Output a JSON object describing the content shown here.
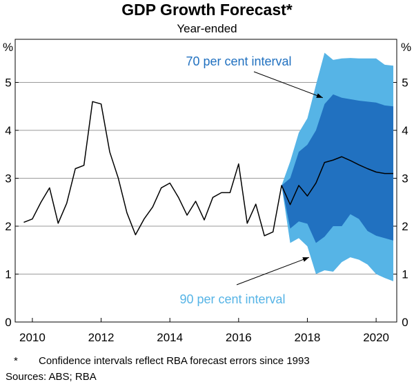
{
  "title": "GDP Growth Forecast*",
  "subtitle": "Year-ended",
  "footnote": {
    "marker": "*",
    "text": "Confidence intervals reflect RBA forecast errors since 1993",
    "sources": "Sources: ABS; RBA"
  },
  "colors": {
    "line": "#000000",
    "band_90": "#56b4e6",
    "band_70": "#2171c0",
    "annotation_70": "#2171c0",
    "annotation_90": "#56b4e6",
    "grid": "#9a9a9a"
  },
  "chart_data": {
    "type": "line",
    "title": "GDP Growth Forecast*",
    "subtitle": "Year-ended",
    "unit_left": "%",
    "unit_right": "%",
    "xlim": [
      2009.5,
      2020.6
    ],
    "ylim": [
      0,
      5.9
    ],
    "grid": true,
    "x_ticks": [
      {
        "value": 2010,
        "label": "2010"
      },
      {
        "value": 2012,
        "label": "2012"
      },
      {
        "value": 2014,
        "label": "2014"
      },
      {
        "value": 2016,
        "label": "2016"
      },
      {
        "value": 2018,
        "label": "2018"
      },
      {
        "value": 2020,
        "label": "2020"
      }
    ],
    "y_ticks": [
      {
        "value": 0,
        "label": "0"
      },
      {
        "value": 1,
        "label": "1"
      },
      {
        "value": 2,
        "label": "2"
      },
      {
        "value": 3,
        "label": "3"
      },
      {
        "value": 4,
        "label": "4"
      },
      {
        "value": 5,
        "label": "5"
      }
    ],
    "series": [
      {
        "kind": "line",
        "x": [
          2009.75,
          2010.0,
          2010.25,
          2010.5,
          2010.75,
          2011.0,
          2011.25,
          2011.5,
          2011.75,
          2012.0,
          2012.25,
          2012.5,
          2012.75,
          2013.0,
          2013.25,
          2013.5,
          2013.75,
          2014.0,
          2014.25,
          2014.5,
          2014.75,
          2015.0,
          2015.25,
          2015.5,
          2015.75,
          2016.0,
          2016.25,
          2016.5,
          2016.75,
          2017.0,
          2017.25,
          2017.5,
          2017.75,
          2018.0,
          2018.25,
          2018.5,
          2018.75,
          2019.0,
          2019.25,
          2019.5,
          2019.75,
          2020.0,
          2020.25,
          2020.5
        ],
        "values": [
          2.08,
          2.15,
          2.5,
          2.8,
          2.06,
          2.48,
          3.2,
          3.27,
          4.6,
          4.55,
          3.55,
          3.0,
          2.28,
          1.82,
          2.15,
          2.4,
          2.8,
          2.9,
          2.6,
          2.23,
          2.52,
          2.13,
          2.6,
          2.7,
          2.7,
          3.3,
          2.06,
          2.46,
          1.8,
          1.88,
          2.85,
          2.45,
          2.85,
          2.63,
          2.9,
          3.33,
          3.38,
          3.45,
          3.37,
          3.28,
          3.2,
          3.13,
          3.1,
          3.1
        ]
      },
      {
        "kind": "band",
        "name": "90 per cent interval",
        "x": [
          2017.25,
          2017.5,
          2017.75,
          2018.0,
          2018.25,
          2018.5,
          2018.75,
          2019.0,
          2019.25,
          2019.5,
          2019.75,
          2020.0,
          2020.25,
          2020.5
        ],
        "upper": [
          2.85,
          3.35,
          3.95,
          4.25,
          4.95,
          5.62,
          5.47,
          5.5,
          5.51,
          5.5,
          5.5,
          5.5,
          5.37,
          5.35
        ],
        "lower": [
          2.85,
          1.65,
          1.75,
          1.58,
          1.0,
          1.08,
          1.05,
          1.25,
          1.35,
          1.3,
          1.2,
          1.0,
          0.92,
          0.85
        ]
      },
      {
        "kind": "band",
        "name": "70 per cent interval",
        "x": [
          2017.25,
          2017.5,
          2017.75,
          2018.0,
          2018.25,
          2018.5,
          2018.75,
          2019.0,
          2019.25,
          2019.5,
          2019.75,
          2020.0,
          2020.25,
          2020.5
        ],
        "upper": [
          2.85,
          3.0,
          3.55,
          3.7,
          4.0,
          4.55,
          4.75,
          4.68,
          4.65,
          4.62,
          4.6,
          4.58,
          4.52,
          4.5
        ],
        "lower": [
          2.85,
          1.95,
          2.1,
          2.05,
          1.65,
          1.78,
          2.0,
          2.0,
          2.25,
          2.15,
          1.9,
          1.8,
          1.75,
          1.7
        ]
      }
    ],
    "annotations": [
      {
        "text": "70 per cent interval",
        "x": 2018.1,
        "y": 5.55,
        "arrow_to_x": 2018.45,
        "arrow_to_y": 4.68
      },
      {
        "text": "90 per cent interval",
        "x": 2018.1,
        "y": 0.5,
        "arrow_to_x": 2018.05,
        "arrow_to_y": 1.35
      }
    ]
  }
}
